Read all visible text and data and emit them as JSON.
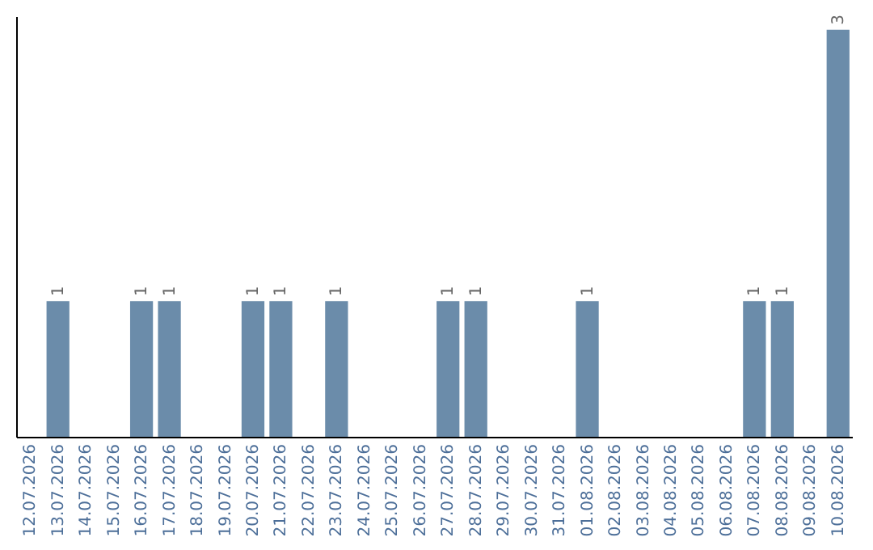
{
  "chart_data": {
    "type": "bar",
    "categories": [
      "12.07.2026",
      "13.07.2026",
      "14.07.2026",
      "15.07.2026",
      "16.07.2026",
      "17.07.2026",
      "18.07.2026",
      "19.07.2026",
      "20.07.2026",
      "21.07.2026",
      "22.07.2026",
      "23.07.2026",
      "24.07.2026",
      "25.07.2026",
      "26.07.2026",
      "27.07.2026",
      "28.07.2026",
      "29.07.2026",
      "30.07.2026",
      "31.07.2026",
      "01.08.2026",
      "02.08.2026",
      "03.08.2026",
      "04.08.2026",
      "05.08.2026",
      "06.08.2026",
      "07.08.2026",
      "08.08.2026",
      "09.08.2026",
      "10.08.2026"
    ],
    "values": [
      null,
      1,
      null,
      null,
      1,
      1,
      null,
      null,
      1,
      1,
      null,
      1,
      null,
      null,
      null,
      1,
      1,
      null,
      null,
      null,
      1,
      null,
      null,
      null,
      null,
      null,
      1,
      1,
      null,
      3
    ],
    "color": "#6b8caa",
    "ylim": [
      0,
      3.1
    ],
    "tick_labels": "x",
    "data_labels": true,
    "grid": false
  }
}
